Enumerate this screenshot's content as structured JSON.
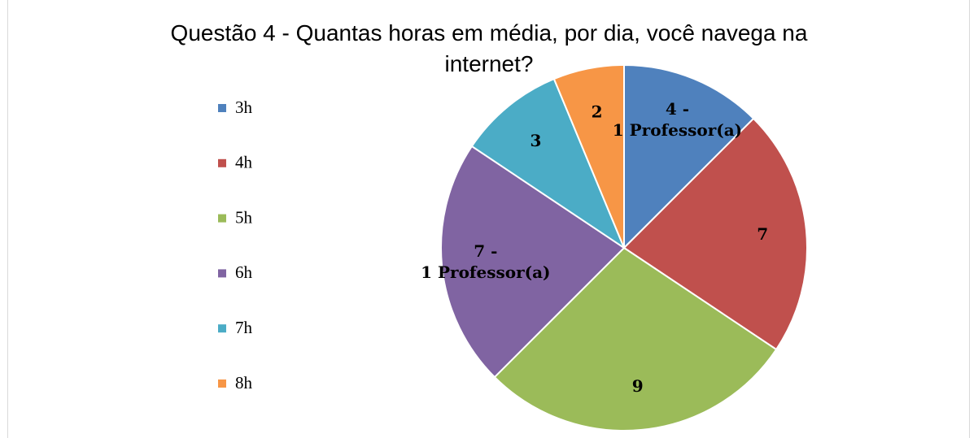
{
  "chart_data": {
    "type": "pie",
    "title": "Questão 4 - Quantas horas em média, por dia, você navega na internet?",
    "categories": [
      "3h",
      "4h",
      "5h",
      "6h",
      "7h",
      "8h"
    ],
    "values": [
      4,
      7,
      9,
      7,
      3,
      2
    ],
    "value_labels": [
      "4 -\n1 Professor(a)",
      "7",
      "9",
      "7 -\n1 Professor(a)",
      "3",
      "2"
    ],
    "colors": [
      "#4f81bd",
      "#c0504d",
      "#9bbb59",
      "#8064a2",
      "#4bacc6",
      "#f79646"
    ],
    "legend": "left"
  }
}
